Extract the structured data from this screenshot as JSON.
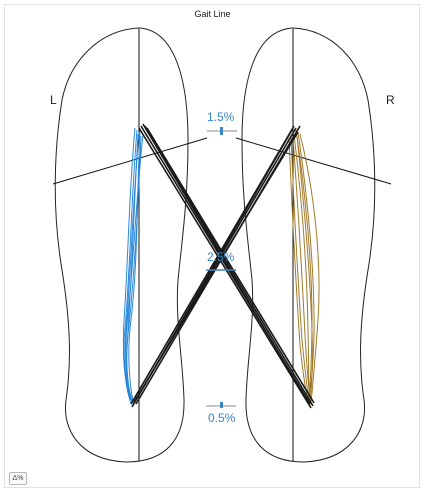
{
  "title": "Gait Line",
  "labels": {
    "left": "L",
    "right": "R"
  },
  "indicators": {
    "top": "1.5%",
    "middle": "2.5%",
    "bottom": "0.5%"
  },
  "corner_button": "Δ%",
  "colors": {
    "left_trace": "#2a88d8",
    "right_trace": "#a07a2a",
    "butterfly": "#1a1a1a",
    "indicator": "#3a85c6",
    "outline": "#222222"
  }
}
